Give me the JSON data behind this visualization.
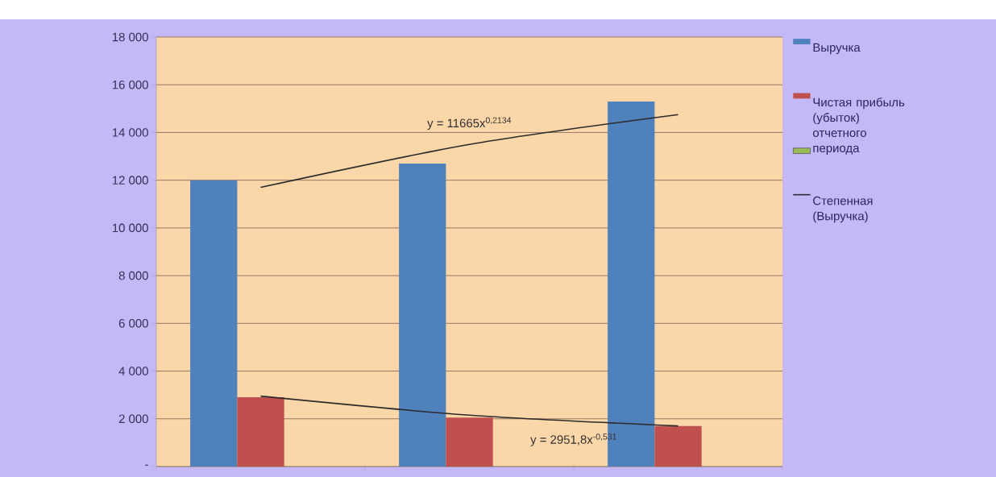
{
  "chart_data": {
    "type": "bar",
    "categories": [
      null,
      null,
      null
    ],
    "series": [
      {
        "name": "Выручка",
        "color": "#4f81bd",
        "values": [
          12000,
          12700,
          15300
        ]
      },
      {
        "name": "Чистая прибыль (убыток) отчетного периода",
        "color": "#c0504d",
        "values": [
          2900,
          2050,
          1700
        ]
      },
      {
        "color": "#9bbb59",
        "values": [
          0,
          0,
          0
        ]
      },
      {
        "type": "line",
        "name": "Степенная (Выручка)",
        "color": "#2b2b2b",
        "values": [
          11700,
          13500,
          14750
        ]
      },
      {
        "type": "line",
        "color": "#2b2b2b",
        "values": [
          2950,
          2150,
          1700
        ]
      }
    ],
    "ylim": [
      0,
      18000
    ],
    "yticks": [
      {
        "value": 0,
        "label": "-"
      },
      {
        "value": 2000,
        "label": "2 000"
      },
      {
        "value": 4000,
        "label": "4 000"
      },
      {
        "value": 6000,
        "label": "6 000"
      },
      {
        "value": 8000,
        "label": "8 000"
      },
      {
        "value": 10000,
        "label": "10 000"
      },
      {
        "value": 12000,
        "label": "12 000"
      },
      {
        "value": 14000,
        "label": "14 000"
      },
      {
        "value": 16000,
        "label": "16 000"
      },
      {
        "value": 18000,
        "label": "18 000"
      }
    ],
    "grid": "y",
    "legend": "right",
    "annotations": [
      "y = 11665x$^{0,2134}$",
      "y = 2951,8x$^{-0,531}$"
    ]
  }
}
